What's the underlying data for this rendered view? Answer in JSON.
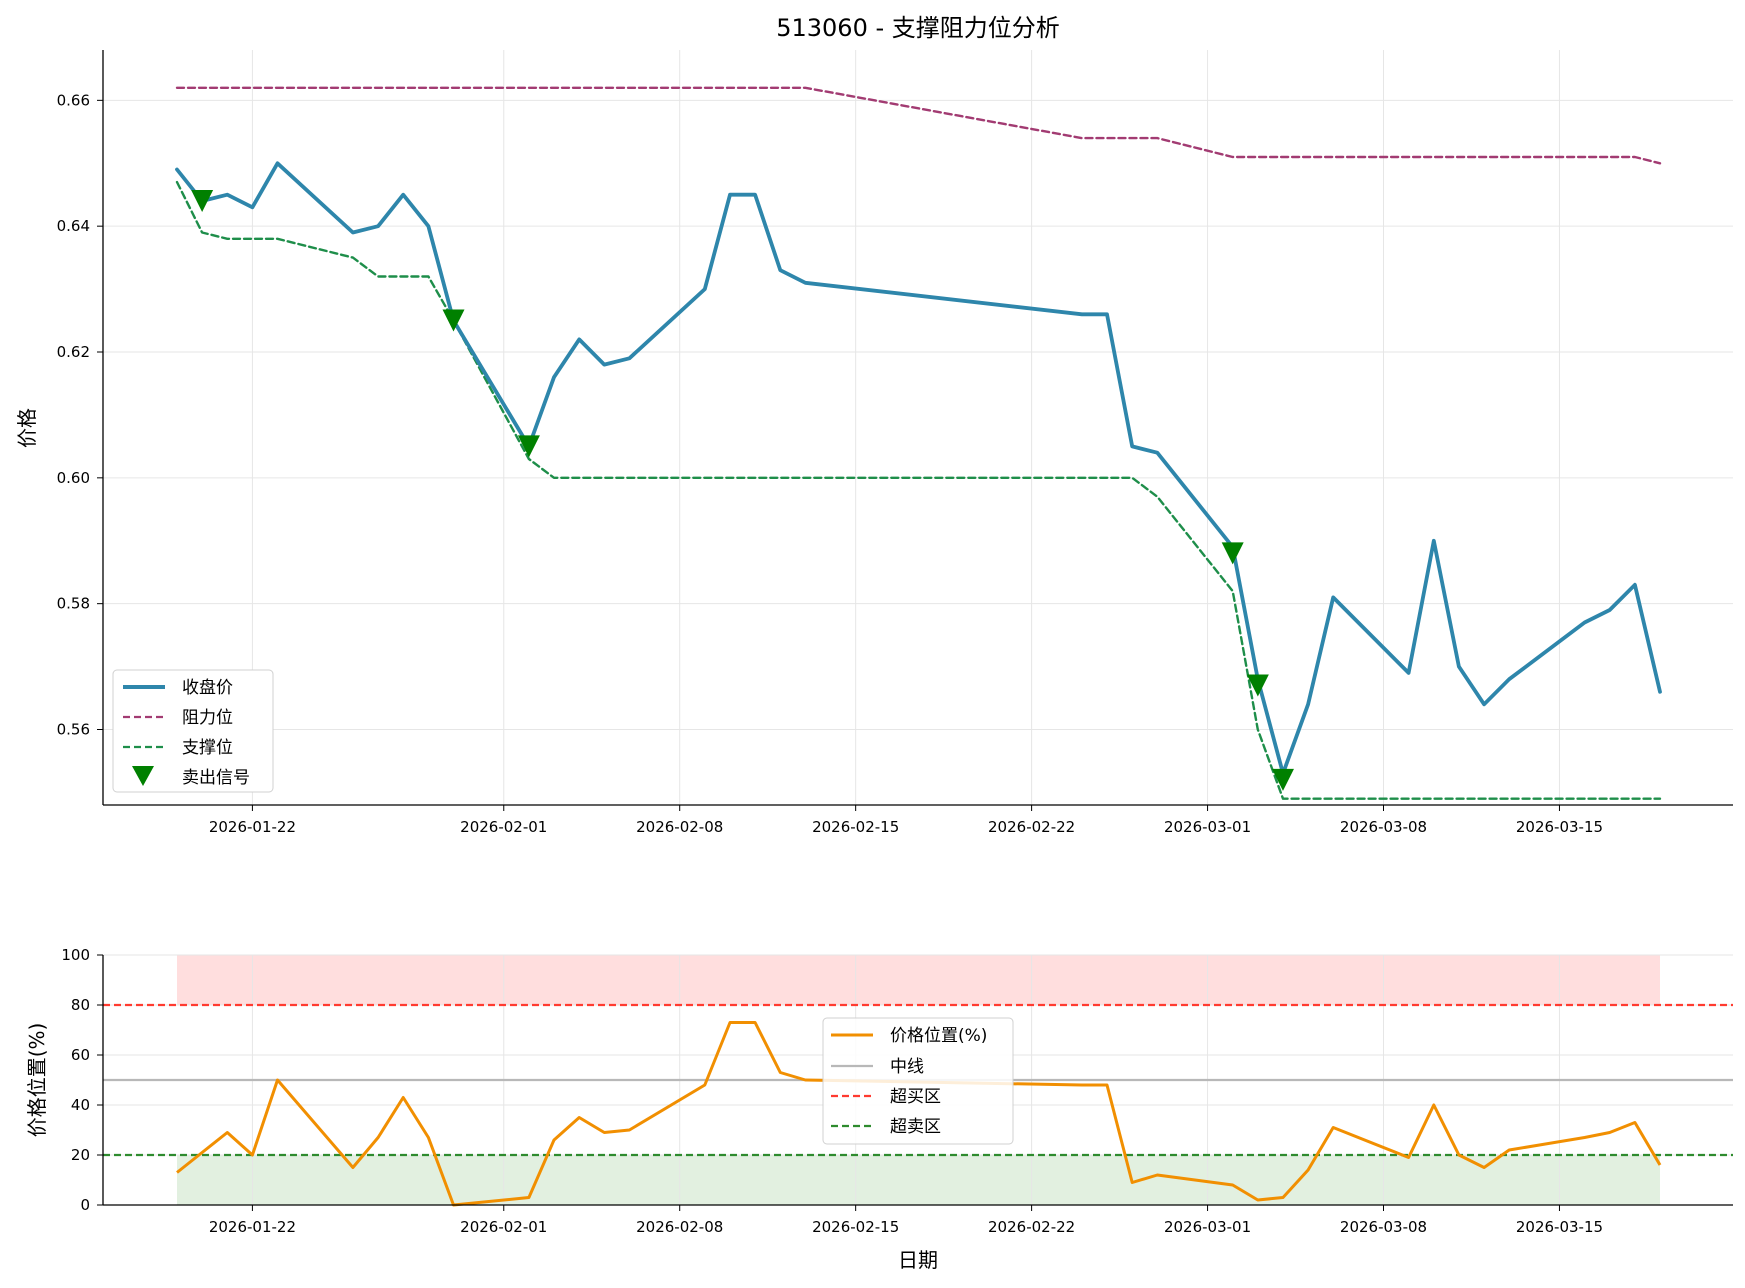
{
  "chart_data": [
    {
      "type": "line",
      "title": "513060 - 支撑阻力位分析",
      "xlabel": "",
      "ylabel": "价格",
      "ylim": [
        0.548,
        0.668
      ],
      "yticks": [
        0.56,
        0.58,
        0.6,
        0.62,
        0.64,
        0.66
      ],
      "ytick_labels": [
        "0.56",
        "0.58",
        "0.60",
        "0.62",
        "0.64",
        "0.66"
      ],
      "xticks": [
        "2026-01-22",
        "2026-02-01",
        "2026-02-08",
        "2026-02-15",
        "2026-02-22",
        "2026-03-01",
        "2026-03-08",
        "2026-03-15"
      ],
      "grid": true,
      "legend_position": "lower-left",
      "x": [
        "2026-01-19",
        "2026-01-20",
        "2026-01-21",
        "2026-01-22",
        "2026-01-23",
        "2026-01-26",
        "2026-01-27",
        "2026-01-28",
        "2026-01-29",
        "2026-01-30",
        "2026-02-02",
        "2026-02-03",
        "2026-02-04",
        "2026-02-05",
        "2026-02-06",
        "2026-02-09",
        "2026-02-10",
        "2026-02-11",
        "2026-02-12",
        "2026-02-13",
        "2026-02-24",
        "2026-02-25",
        "2026-02-26",
        "2026-02-27",
        "2026-03-02",
        "2026-03-03",
        "2026-03-04",
        "2026-03-05",
        "2026-03-06",
        "2026-03-09",
        "2026-03-10",
        "2026-03-11",
        "2026-03-12",
        "2026-03-13",
        "2026-03-16",
        "2026-03-17",
        "2026-03-18",
        "2026-03-19"
      ],
      "series": [
        {
          "name": "收盘价",
          "color": "#2e86ab",
          "style": "solid",
          "values": [
            0.649,
            0.644,
            0.645,
            0.643,
            0.65,
            0.639,
            0.64,
            0.645,
            0.64,
            0.625,
            0.605,
            0.616,
            0.622,
            0.618,
            0.619,
            0.63,
            0.645,
            0.645,
            0.633,
            0.631,
            0.626,
            0.626,
            0.605,
            0.604,
            0.589,
            0.568,
            0.553,
            0.564,
            0.581,
            0.569,
            0.59,
            0.57,
            0.564,
            0.568,
            0.577,
            0.579,
            0.583,
            0.566
          ]
        },
        {
          "name": "阻力位",
          "color": "#a23b72",
          "style": "dashed",
          "values": [
            0.662,
            0.662,
            0.662,
            0.662,
            0.662,
            0.662,
            0.662,
            0.662,
            0.662,
            0.662,
            0.662,
            0.662,
            0.662,
            0.662,
            0.662,
            0.662,
            0.662,
            0.662,
            0.662,
            0.662,
            0.654,
            0.654,
            0.654,
            0.654,
            0.651,
            0.651,
            0.651,
            0.651,
            0.651,
            0.651,
            0.651,
            0.651,
            0.651,
            0.651,
            0.651,
            0.651,
            0.651,
            0.65
          ]
        },
        {
          "name": "支撑位",
          "color": "#1e8e4a",
          "style": "dashed",
          "values": [
            0.647,
            0.639,
            0.638,
            0.638,
            0.638,
            0.635,
            0.632,
            0.632,
            0.632,
            0.625,
            0.603,
            0.6,
            0.6,
            0.6,
            0.6,
            0.6,
            0.6,
            0.6,
            0.6,
            0.6,
            0.6,
            0.6,
            0.6,
            0.597,
            0.582,
            0.56,
            0.549,
            0.549,
            0.549,
            0.549,
            0.549,
            0.549,
            0.549,
            0.549,
            0.549,
            0.549,
            0.549,
            0.549
          ]
        }
      ],
      "markers": {
        "name": "卖出信号",
        "color": "#008000",
        "shape": "triangle-down",
        "points": [
          {
            "x": "2026-01-20",
            "y": 0.644
          },
          {
            "x": "2026-01-30",
            "y": 0.625
          },
          {
            "x": "2026-02-02",
            "y": 0.605
          },
          {
            "x": "2026-03-02",
            "y": 0.588
          },
          {
            "x": "2026-03-03",
            "y": 0.567
          },
          {
            "x": "2026-03-04",
            "y": 0.552
          }
        ]
      }
    },
    {
      "type": "line",
      "title": "",
      "xlabel": "日期",
      "ylabel": "价格位置(%)",
      "ylim": [
        0,
        100
      ],
      "yticks": [
        0,
        20,
        40,
        60,
        80,
        100
      ],
      "ytick_labels": [
        "0",
        "20",
        "40",
        "60",
        "80",
        "100"
      ],
      "xticks": [
        "2026-01-22",
        "2026-02-01",
        "2026-02-08",
        "2026-02-15",
        "2026-02-22",
        "2026-03-01",
        "2026-03-08",
        "2026-03-15"
      ],
      "grid": true,
      "legend_position": "center",
      "series": [
        {
          "name": "价格位置(%)",
          "color": "#f18f01",
          "style": "solid",
          "values": [
            13,
            21,
            29,
            20,
            50,
            15,
            27,
            43,
            27,
            0,
            3,
            26,
            35,
            29,
            30,
            48,
            73,
            73,
            53,
            50,
            48,
            48,
            9,
            12,
            8,
            2,
            3,
            14,
            31,
            19,
            40,
            20,
            15,
            22,
            27,
            29,
            33,
            16
          ]
        }
      ],
      "reference_lines": [
        {
          "name": "中线",
          "value": 50,
          "color": "#b8b8b8",
          "style": "solid"
        },
        {
          "name": "超买区",
          "value": 80,
          "color": "#ff3b30",
          "style": "dashed"
        },
        {
          "name": "超卖区",
          "value": 20,
          "color": "#2e8b2e",
          "style": "dashed"
        }
      ],
      "bands": [
        {
          "from": 80,
          "to": 100,
          "color": "#ffdede"
        },
        {
          "from": 0,
          "to": 20,
          "color": "#e2f0e0"
        }
      ]
    }
  ]
}
